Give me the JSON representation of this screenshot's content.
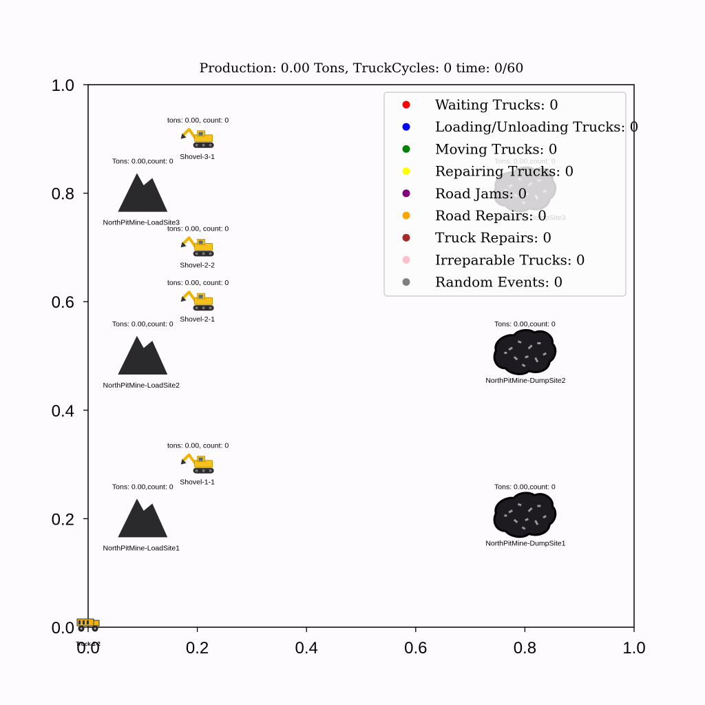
{
  "chart_data": {
    "type": "scatter",
    "title": "Production: 0.00 Tons, TruckCycles: 0 time: 0/60",
    "xlabel": "",
    "ylabel": "",
    "xlim": [
      0.0,
      1.0
    ],
    "ylim": [
      0.0,
      1.0
    ],
    "x_ticks": [
      "0.0",
      "0.2",
      "0.4",
      "0.6",
      "0.8",
      "1.0"
    ],
    "y_ticks": [
      "0.0",
      "0.2",
      "0.4",
      "0.6",
      "0.8",
      "1.0"
    ],
    "x_tick_values": [
      0.0,
      0.2,
      0.4,
      0.6,
      0.8,
      1.0
    ],
    "y_tick_values": [
      0.0,
      0.2,
      0.4,
      0.6,
      0.8,
      1.0
    ],
    "grid": false,
    "legend_position": "top-right",
    "legend": [
      {
        "label": "Waiting Trucks: 0",
        "color": "#ff0000"
      },
      {
        "label": "Loading/Unloading Trucks: 0",
        "color": "#0000ff"
      },
      {
        "label": "Moving Trucks: 0",
        "color": "#008000"
      },
      {
        "label": "Repairing Trucks: 0",
        "color": "#ffff00"
      },
      {
        "label": "Road Jams: 0",
        "color": "#800080"
      },
      {
        "label": "Road Repairs: 0",
        "color": "#ffa500"
      },
      {
        "label": "Truck Repairs: 0",
        "color": "#a52a2a"
      },
      {
        "label": "Irreparable Trucks: 0",
        "color": "#ffc0cb"
      },
      {
        "label": "Random Events: 0",
        "color": "#808080"
      }
    ],
    "load_sites": [
      {
        "name": "NorthPitMine-LoadSite1",
        "stats": "Tons: 0.00,count: 0",
        "x": 0.1,
        "y": 0.2
      },
      {
        "name": "NorthPitMine-LoadSite2",
        "stats": "Tons: 0.00,count: 0",
        "x": 0.1,
        "y": 0.5
      },
      {
        "name": "NorthPitMine-LoadSite3",
        "stats": "Tons: 0.00,count: 0",
        "x": 0.1,
        "y": 0.8
      }
    ],
    "dump_sites": [
      {
        "name": "NorthPitMine-DumpSite1",
        "stats": "Tons: 0.00,count: 0",
        "x": 0.8,
        "y": 0.2
      },
      {
        "name": "NorthPitMine-DumpSite2",
        "stats": "Tons: 0.00,count: 0",
        "x": 0.8,
        "y": 0.5
      },
      {
        "name": "NorthPitMine-DumpSite3",
        "stats": "Tons: 0.00,count: 0",
        "x": 0.8,
        "y": 0.8
      }
    ],
    "shovels": [
      {
        "name": "Shovel-1-1",
        "stats": "tons: 0.00, count: 0",
        "x": 0.2,
        "y": 0.3
      },
      {
        "name": "Shovel-2-1",
        "stats": "tons: 0.00, count: 0",
        "x": 0.2,
        "y": 0.6
      },
      {
        "name": "Shovel-2-2",
        "stats": "tons: 0.00, count: 0",
        "x": 0.2,
        "y": 0.7
      },
      {
        "name": "Shovel-3-1",
        "stats": "tons: 0.00, count: 0",
        "x": 0.2,
        "y": 0.9
      }
    ],
    "trucks": [
      {
        "name": "Truck-1-2",
        "x": 0.0,
        "y": 0.0
      }
    ]
  }
}
